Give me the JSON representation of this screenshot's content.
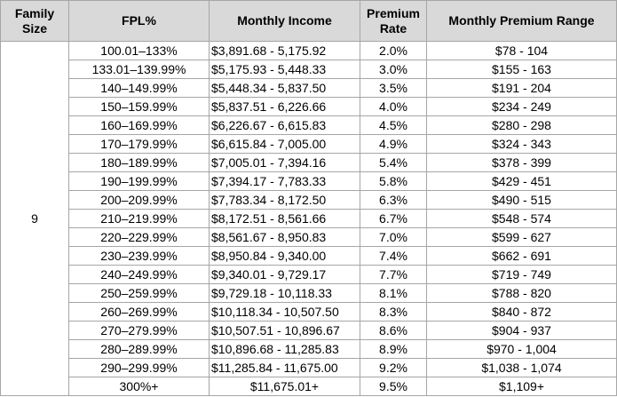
{
  "table": {
    "header": [
      "Family Size",
      "FPL%",
      "Monthly Income",
      "Premium Rate",
      "Monthly Premium Range"
    ],
    "family_size": "9",
    "rows": [
      [
        "100.01–133%",
        "$3,891.68 - 5,175.92",
        "2.0%",
        "$78 - 104"
      ],
      [
        "133.01–139.99%",
        "$5,175.93 - 5,448.33",
        "3.0%",
        "$155 - 163"
      ],
      [
        "140–149.99%",
        "$5,448.34 - 5,837.50",
        "3.5%",
        "$191 - 204"
      ],
      [
        "150–159.99%",
        "$5,837.51 - 6,226.66",
        "4.0%",
        "$234 - 249"
      ],
      [
        "160–169.99%",
        "$6,226.67 - 6,615.83",
        "4.5%",
        "$280 - 298"
      ],
      [
        "170–179.99%",
        "$6,615.84 - 7,005.00",
        "4.9%",
        "$324 - 343"
      ],
      [
        "180–189.99%",
        "$7,005.01 - 7,394.16",
        "5.4%",
        "$378 - 399"
      ],
      [
        "190–199.99%",
        "$7,394.17 - 7,783.33",
        "5.8%",
        "$429 - 451"
      ],
      [
        "200–209.99%",
        "$7,783.34 - 8,172.50",
        "6.3%",
        "$490 - 515"
      ],
      [
        "210–219.99%",
        "$8,172.51 - 8,561.66",
        "6.7%",
        "$548 - 574"
      ],
      [
        "220–229.99%",
        "$8,561.67 - 8,950.83",
        "7.0%",
        "$599 - 627"
      ],
      [
        "230–239.99%",
        "$8,950.84 - 9,340.00",
        "7.4%",
        "$662 - 691"
      ],
      [
        "240–249.99%",
        "$9,340.01 - 9,729.17",
        "7.7%",
        "$719 - 749"
      ],
      [
        "250–259.99%",
        "$9,729.18 - 10,118.33",
        "8.1%",
        "$788 - 820"
      ],
      [
        "260–269.99%",
        "$10,118.34 - 10,507.50",
        "8.3%",
        "$840 - 872"
      ],
      [
        "270–279.99%",
        "$10,507.51 - 10,896.67",
        "8.6%",
        "$904 - 937"
      ],
      [
        "280–289.99%",
        "$10,896.68 - 11,285.83",
        "8.9%",
        "$970 - 1,004"
      ],
      [
        "290–299.99%",
        "$11,285.84 - 11,675.00",
        "9.2%",
        "$1,038 - 1,074"
      ],
      [
        "300%+",
        "$11,675.01+",
        "9.5%",
        "$1,109+"
      ]
    ]
  }
}
